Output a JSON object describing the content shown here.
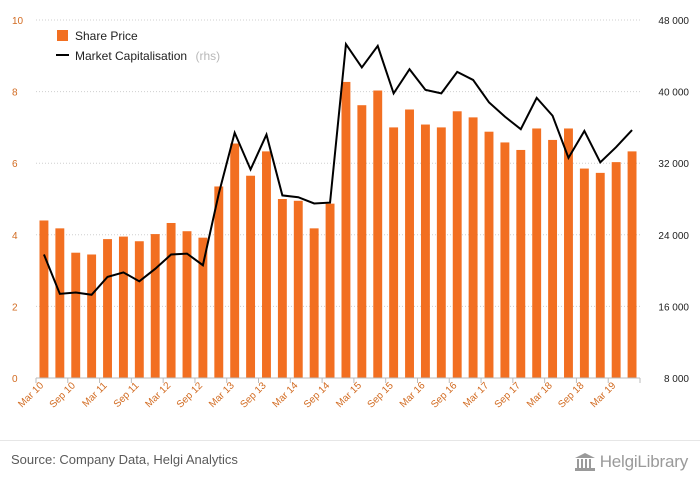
{
  "chart_data": {
    "type": "bar",
    "title": "",
    "xlabel": "",
    "ylabel": "",
    "ylim": [
      0,
      10
    ],
    "y2lim": [
      8000,
      48000
    ],
    "y_ticks": [
      "0",
      "2",
      "4",
      "6",
      "8",
      "10"
    ],
    "y2_ticks": [
      "8 000",
      "16 000",
      "24 000",
      "32 000",
      "40 000",
      "48 000"
    ],
    "x_tick_labels": [
      "Mar 10",
      "Sep 10",
      "Mar 11",
      "Sep 11",
      "Mar 12",
      "Sep 12",
      "Mar 13",
      "Sep 13",
      "Mar 14",
      "Sep 14",
      "Mar 15",
      "Sep 15",
      "Mar 16",
      "Sep 16",
      "Mar 17",
      "Sep 17",
      "Mar 18",
      "Sep 18",
      "Mar 19"
    ],
    "grid": true,
    "legend_position": "top-left",
    "series": [
      {
        "name": "Share Price",
        "type": "bar",
        "axis": "left",
        "color": "#f26f21",
        "values": [
          4.4,
          4.18,
          3.5,
          3.45,
          3.88,
          3.95,
          3.82,
          4.02,
          4.33,
          4.1,
          3.92,
          5.35,
          6.55,
          5.65,
          6.33,
          5.0,
          4.95,
          4.18,
          4.87,
          8.27,
          7.62,
          8.03,
          7.0,
          7.5,
          7.08,
          7.0,
          7.45,
          7.28,
          6.88,
          6.58,
          6.37,
          6.97,
          6.65,
          6.97,
          5.85,
          5.73,
          6.03,
          6.33
        ]
      },
      {
        "name": "Market Capitalisation",
        "name_note": "(rhs)",
        "type": "line",
        "axis": "right",
        "color": "#000000",
        "values": [
          21800,
          17400,
          17550,
          17300,
          19300,
          19800,
          18800,
          20200,
          21800,
          21900,
          20600,
          28600,
          35400,
          31300,
          35200,
          28400,
          28200,
          27500,
          27600,
          45300,
          42700,
          45100,
          39800,
          42500,
          40200,
          39800,
          42200,
          41300,
          38800,
          37200,
          35800,
          39300,
          37300,
          32600,
          35600,
          32100,
          33800,
          35700
        ]
      }
    ]
  },
  "footer": {
    "source": "Source: Company Data, Helgi Analytics",
    "logo_text": "HelgiLibrary"
  }
}
